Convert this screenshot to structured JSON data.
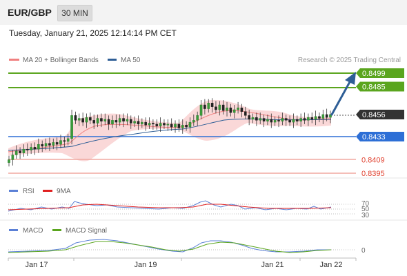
{
  "header": {
    "symbol": "EUR/GBP",
    "timeframe": "30 MIN",
    "timestamp": "Tuesday, January 21, 2025 12:14:14 PM CET"
  },
  "legend": {
    "ma20_label": "MA 20 + Bollinger Bands",
    "ma50_label": "MA 50",
    "credit": "Research © 2025 Trading Central",
    "ma20_color": "#f08080",
    "ma50_color": "#2e5e96"
  },
  "levels": [
    {
      "label": "0.8499",
      "value": 0.8499,
      "type": "target",
      "color": "#5aa51e"
    },
    {
      "label": "0.8485",
      "value": 0.8485,
      "type": "target",
      "color": "#5aa51e"
    },
    {
      "label": "0.8456",
      "value": 0.8456,
      "type": "current",
      "color": "#333333"
    },
    {
      "label": "0.8433",
      "value": 0.8433,
      "type": "pivot",
      "color": "#2d6fd6"
    },
    {
      "label": "0.8409",
      "value": 0.8409,
      "type": "support",
      "color": "#e0402e"
    },
    {
      "label": "0.8395",
      "value": 0.8395,
      "type": "support",
      "color": "#e0402e"
    }
  ],
  "rsi_panel": {
    "rsi_label": "RSI",
    "ma_label": "9MA",
    "rsi_color": "#5b80d6",
    "ma_color": "#e02020",
    "levels": [
      "70",
      "50",
      "30"
    ]
  },
  "macd_panel": {
    "macd_label": "MACD",
    "signal_label": "MACD Signal",
    "macd_color": "#5b80d6",
    "signal_color": "#5aa51e",
    "zero_label": "0"
  },
  "x_axis": {
    "labels": [
      "Jan 17",
      "Jan 19",
      "Jan 21",
      "Jan 22"
    ]
  },
  "chart_data": {
    "type": "candlestick",
    "instrument": "EUR/GBP",
    "interval": "30 MIN",
    "ylim": [
      0.8385,
      0.851
    ],
    "series_close": [
      0.8409,
      0.8414,
      0.8418,
      0.8416,
      0.842,
      0.8419,
      0.8422,
      0.842,
      0.8425,
      0.8423,
      0.8426,
      0.8424,
      0.8427,
      0.8425,
      0.8429,
      0.8428,
      0.8431,
      0.8455,
      0.845,
      0.8452,
      0.8448,
      0.8453,
      0.845,
      0.8447,
      0.8452,
      0.8449,
      0.8451,
      0.8446,
      0.845,
      0.8448,
      0.8452,
      0.8449,
      0.8451,
      0.8447,
      0.8449,
      0.8446,
      0.8448,
      0.8445,
      0.8447,
      0.8446,
      0.8444,
      0.8447,
      0.8445,
      0.8446,
      0.8443,
      0.8446,
      0.8442,
      0.8445,
      0.8443,
      0.8448,
      0.845,
      0.8455,
      0.8466,
      0.8462,
      0.8468,
      0.8464,
      0.8461,
      0.8466,
      0.846,
      0.8463,
      0.8458,
      0.8461,
      0.8463,
      0.8459,
      0.8455,
      0.8451,
      0.8453,
      0.845,
      0.8452,
      0.8449,
      0.8451,
      0.8448,
      0.845,
      0.8449,
      0.8452,
      0.845,
      0.8448,
      0.8451,
      0.8449,
      0.8452,
      0.845,
      0.8453,
      0.8451,
      0.8454,
      0.8452,
      0.8456,
      0.8453,
      0.8456
    ]
  }
}
